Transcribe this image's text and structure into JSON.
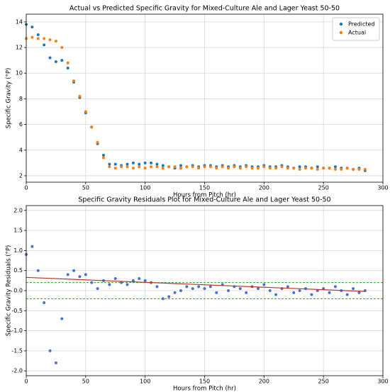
{
  "chart_data": [
    {
      "type": "scatter",
      "title": "Actual vs Predicted Specific Gravity for Mixed-Culture Ale and Lager Yeast 50-50",
      "xlabel": "Hours from Pitch (hr)",
      "ylabel": "Specific Gravity (°P)",
      "x": [
        0,
        5,
        10,
        15,
        20,
        25,
        30,
        35,
        40,
        45,
        50,
        55,
        60,
        65,
        70,
        75,
        80,
        85,
        90,
        95,
        100,
        105,
        110,
        115,
        120,
        125,
        130,
        135,
        140,
        145,
        150,
        155,
        160,
        165,
        170,
        175,
        180,
        185,
        190,
        195,
        200,
        205,
        210,
        215,
        220,
        225,
        230,
        235,
        240,
        245,
        250,
        255,
        260,
        265,
        270,
        275,
        280,
        285
      ],
      "series": [
        {
          "name": "Predicted",
          "color": "#1f77b4",
          "values": [
            13.8,
            13.6,
            13.0,
            12.2,
            11.2,
            10.9,
            11.0,
            10.4,
            9.3,
            8.1,
            6.9,
            5.8,
            4.5,
            3.6,
            2.9,
            2.9,
            2.8,
            2.9,
            3.0,
            2.9,
            3.0,
            3.0,
            2.9,
            2.8,
            2.7,
            2.6,
            2.8,
            2.7,
            2.8,
            2.7,
            2.8,
            2.8,
            2.7,
            2.8,
            2.7,
            2.8,
            2.7,
            2.8,
            2.7,
            2.7,
            2.8,
            2.7,
            2.7,
            2.8,
            2.7,
            2.6,
            2.7,
            2.7,
            2.6,
            2.7,
            2.6,
            2.6,
            2.7,
            2.6,
            2.6,
            2.5,
            2.6,
            2.4
          ]
        },
        {
          "name": "Actual",
          "color": "#ff7f0e",
          "values": [
            12.7,
            12.8,
            12.7,
            12.7,
            12.6,
            12.5,
            12.0,
            10.8,
            9.4,
            8.2,
            7.0,
            5.8,
            4.6,
            3.4,
            2.7,
            2.6,
            2.7,
            2.7,
            2.6,
            2.7,
            2.6,
            2.7,
            2.7,
            2.6,
            2.7,
            2.7,
            2.6,
            2.7,
            2.7,
            2.6,
            2.7,
            2.7,
            2.6,
            2.7,
            2.6,
            2.7,
            2.6,
            2.7,
            2.6,
            2.6,
            2.7,
            2.6,
            2.6,
            2.7,
            2.6,
            2.6,
            2.5,
            2.6,
            2.6,
            2.5,
            2.6,
            2.6,
            2.5,
            2.5,
            2.6,
            2.5,
            2.5,
            2.5
          ]
        }
      ],
      "xlim": [
        0,
        300
      ],
      "ylim": [
        1.5,
        14.6
      ],
      "xticks": [
        0,
        50,
        100,
        150,
        200,
        250,
        300
      ],
      "yticks": [
        2,
        4,
        6,
        8,
        10,
        12,
        14
      ],
      "grid": true,
      "legend": "upper right"
    },
    {
      "type": "scatter",
      "title": "Specific Gravity Residuals Plot for Mixed-Culture Ale and Lager Yeast 50-50",
      "xlabel": "Hours from Pitch (hr)",
      "ylabel": "Specific Gravity Residuals (°P)",
      "x": [
        0,
        5,
        10,
        15,
        20,
        25,
        30,
        35,
        40,
        45,
        50,
        55,
        60,
        65,
        70,
        75,
        80,
        85,
        90,
        95,
        100,
        105,
        110,
        115,
        120,
        125,
        130,
        135,
        140,
        145,
        150,
        155,
        160,
        165,
        170,
        175,
        180,
        185,
        190,
        195,
        200,
        205,
        210,
        215,
        220,
        225,
        230,
        235,
        240,
        245,
        250,
        255,
        260,
        265,
        270,
        275,
        280,
        285
      ],
      "series": [
        {
          "color": "#4c6fd6",
          "values": [
            0.9,
            1.1,
            0.5,
            -0.3,
            -1.5,
            -1.8,
            -0.7,
            0.4,
            0.5,
            0.35,
            0.4,
            0.2,
            0.05,
            0.25,
            0.15,
            0.3,
            0.2,
            0.15,
            0.25,
            0.3,
            0.25,
            0.2,
            0.1,
            -0.2,
            -0.15,
            -0.05,
            0.0,
            0.1,
            0.05,
            0.1,
            0.05,
            0.1,
            -0.05,
            0.15,
            0.0,
            0.1,
            0.05,
            -0.05,
            0.1,
            0.05,
            0.15,
            0.0,
            -0.1,
            0.05,
            0.1,
            -0.05,
            0.0,
            0.05,
            -0.1,
            0.0,
            0.05,
            -0.05,
            0.1,
            0.0,
            -0.1,
            0.05,
            -0.05,
            0.0
          ]
        }
      ],
      "lines": [
        {
          "color": "#b5382a",
          "x": [
            0,
            285
          ],
          "values": [
            0.33,
            -0.02
          ]
        }
      ],
      "hlines": [
        {
          "value": 0.2,
          "color": "#2ca02c"
        },
        {
          "value": -0.2,
          "color": "#2ca02c"
        }
      ],
      "xlim": [
        0,
        300
      ],
      "ylim": [
        -2.12,
        2.12
      ],
      "xticks": [
        0,
        50,
        100,
        150,
        200,
        250,
        300
      ],
      "yticks": [
        {
          "value": -2,
          "label": "-2.0"
        },
        {
          "value": -1.5,
          "label": "-1.5"
        },
        {
          "value": -1,
          "label": "-1.0"
        },
        {
          "value": -0.5,
          "label": "-0.5"
        },
        {
          "value": 0,
          "label": "0.0"
        },
        0.5,
        {
          "value": 1,
          "label": "1.0"
        },
        1.5,
        {
          "value": 2,
          "label": "2.0"
        }
      ],
      "grid": true
    }
  ]
}
